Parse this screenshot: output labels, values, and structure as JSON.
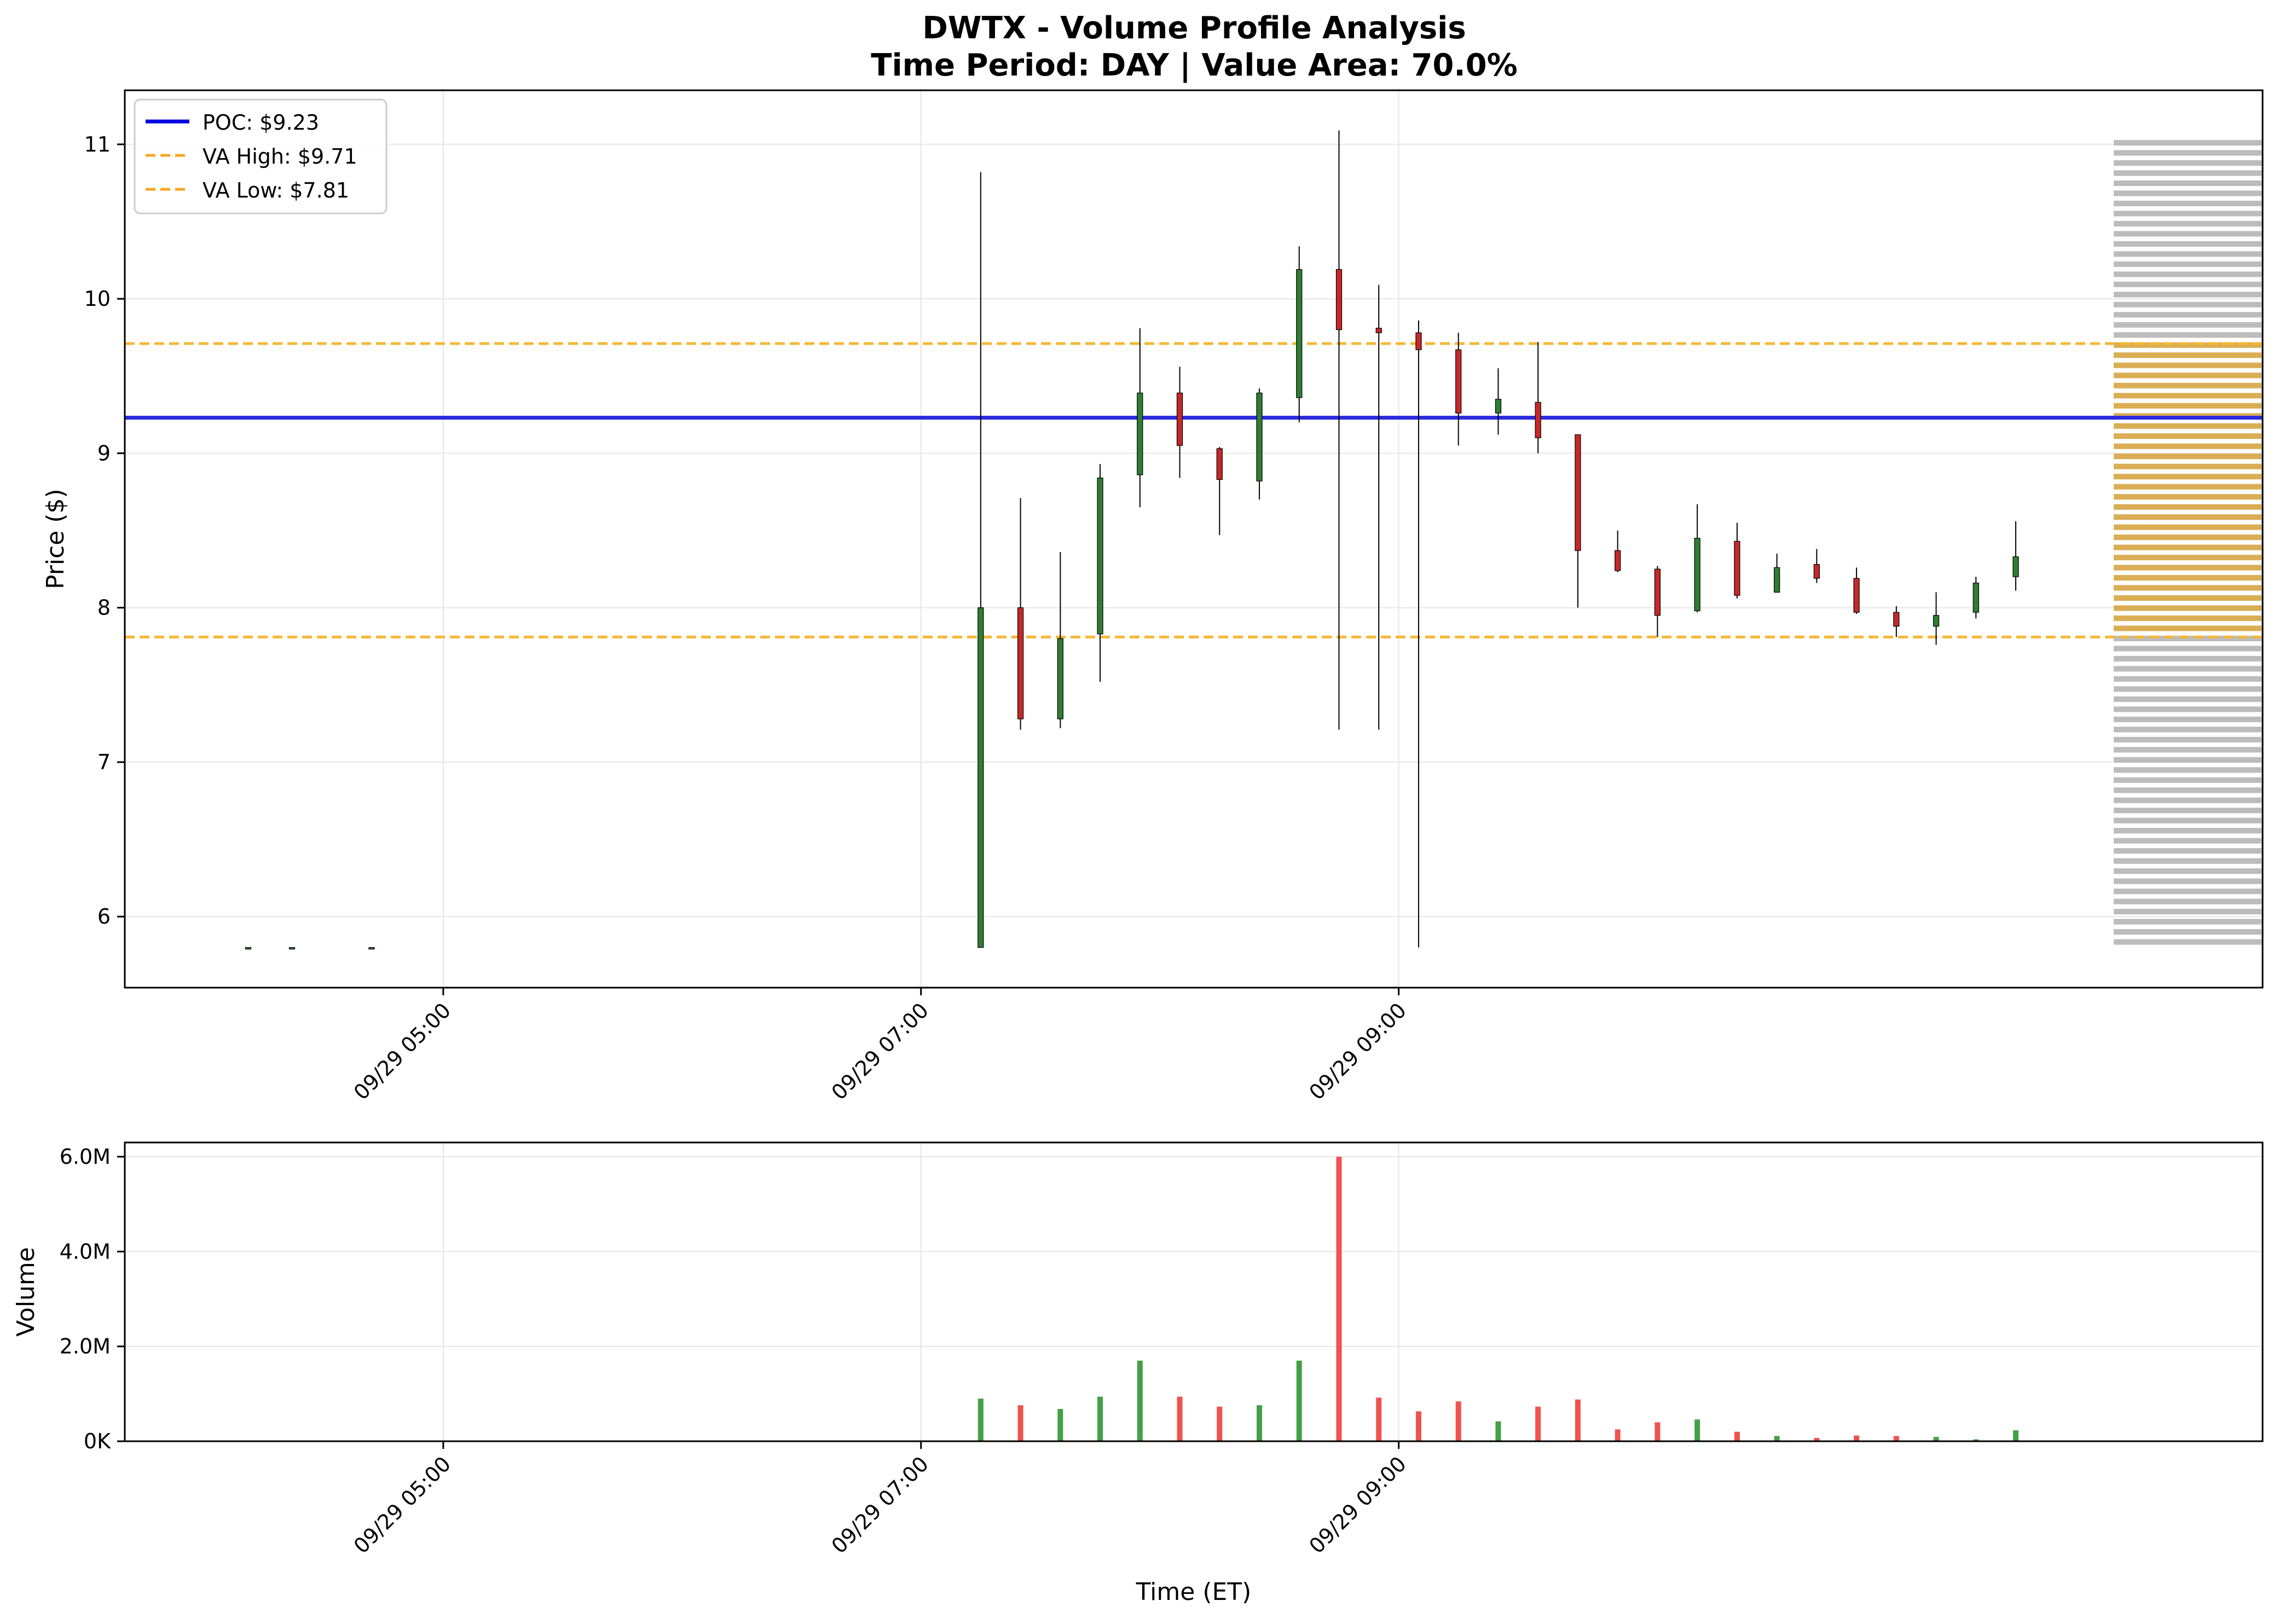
{
  "chart_data": {
    "type": "candlestick-volume-profile",
    "title": "DWTX - Volume Profile Analysis",
    "subtitle": "Time Period: DAY | Value Area: 70.0%",
    "xlabel": "Time (ET)",
    "price_panel": {
      "ylabel": "Price ($)",
      "ylim": [
        5.54,
        11.35
      ],
      "yticks": [
        6,
        7,
        8,
        9,
        10,
        11
      ],
      "ytick_labels": [
        "6",
        "7",
        "8",
        "9",
        "10",
        "11"
      ],
      "grid": true,
      "legend_position": "top-left",
      "legend": [
        {
          "label": "POC: $9.23",
          "style": "solid",
          "color": "#0000e0"
        },
        {
          "label": "VA High: $9.71",
          "style": "dashed",
          "color": "#f5a623"
        },
        {
          "label": "VA Low: $7.81",
          "style": "dashed",
          "color": "#f5a623"
        }
      ],
      "poc": 9.23,
      "va_high": 9.71,
      "va_low": 7.81,
      "candles": [
        {
          "t": 251,
          "o": 5.8,
          "h": 5.8,
          "l": 5.8,
          "c": 5.8
        },
        {
          "t": 262,
          "o": 5.8,
          "h": 5.8,
          "l": 5.8,
          "c": 5.8
        },
        {
          "t": 282,
          "o": 5.8,
          "h": 5.8,
          "l": 5.8,
          "c": 5.8
        },
        {
          "t": 435,
          "o": 5.8,
          "h": 10.82,
          "l": 5.8,
          "c": 8.0
        },
        {
          "t": 445,
          "o": 8.0,
          "h": 8.71,
          "l": 7.21,
          "c": 7.28
        },
        {
          "t": 455,
          "o": 7.28,
          "h": 8.36,
          "l": 7.22,
          "c": 7.8
        },
        {
          "t": 465,
          "o": 7.83,
          "h": 8.93,
          "l": 7.52,
          "c": 8.84
        },
        {
          "t": 475,
          "o": 8.86,
          "h": 9.81,
          "l": 8.65,
          "c": 9.39
        },
        {
          "t": 485,
          "o": 9.39,
          "h": 9.56,
          "l": 8.84,
          "c": 9.05
        },
        {
          "t": 495,
          "o": 9.03,
          "h": 9.04,
          "l": 8.47,
          "c": 8.83
        },
        {
          "t": 505,
          "o": 8.82,
          "h": 9.42,
          "l": 8.7,
          "c": 9.39
        },
        {
          "t": 515,
          "o": 9.36,
          "h": 10.34,
          "l": 9.2,
          "c": 10.19
        },
        {
          "t": 525,
          "o": 10.19,
          "h": 11.09,
          "l": 7.21,
          "c": 9.8
        },
        {
          "t": 535,
          "o": 9.81,
          "h": 10.09,
          "l": 7.21,
          "c": 9.78
        },
        {
          "t": 545,
          "o": 9.78,
          "h": 9.86,
          "l": 5.8,
          "c": 9.67
        },
        {
          "t": 555,
          "o": 9.67,
          "h": 9.78,
          "l": 9.05,
          "c": 9.26
        },
        {
          "t": 565,
          "o": 9.26,
          "h": 9.55,
          "l": 9.12,
          "c": 9.35
        },
        {
          "t": 575,
          "o": 9.33,
          "h": 9.72,
          "l": 9.0,
          "c": 9.1
        },
        {
          "t": 585,
          "o": 9.12,
          "h": 9.12,
          "l": 8.0,
          "c": 8.37
        },
        {
          "t": 595,
          "o": 8.37,
          "h": 8.5,
          "l": 8.23,
          "c": 8.24
        },
        {
          "t": 605,
          "o": 8.25,
          "h": 8.27,
          "l": 7.81,
          "c": 7.95
        },
        {
          "t": 615,
          "o": 7.98,
          "h": 8.67,
          "l": 7.97,
          "c": 8.45
        },
        {
          "t": 625,
          "o": 8.43,
          "h": 8.55,
          "l": 8.06,
          "c": 8.08
        },
        {
          "t": 635,
          "o": 8.1,
          "h": 8.35,
          "l": 8.1,
          "c": 8.26
        },
        {
          "t": 645,
          "o": 8.28,
          "h": 8.38,
          "l": 8.16,
          "c": 8.19
        },
        {
          "t": 655,
          "o": 8.19,
          "h": 8.26,
          "l": 7.96,
          "c": 7.97
        },
        {
          "t": 665,
          "o": 7.97,
          "h": 8.01,
          "l": 7.81,
          "c": 7.88
        },
        {
          "t": 675,
          "o": 7.88,
          "h": 8.1,
          "l": 7.76,
          "c": 7.95
        },
        {
          "t": 685,
          "o": 7.97,
          "h": 8.2,
          "l": 7.93,
          "c": 8.16
        },
        {
          "t": 695,
          "o": 8.2,
          "h": 8.56,
          "l": 8.11,
          "c": 8.33
        }
      ],
      "volume_profile": {
        "price_min": 5.8,
        "price_max": 11.04,
        "bins": 80,
        "bar_color": "#b0b0b0",
        "value_area_color": "#d4a037"
      }
    },
    "volume_panel": {
      "ylabel": "Volume",
      "ylim": [
        0,
        6300000
      ],
      "yticks": [
        0,
        2000000,
        4000000,
        6000000
      ],
      "ytick_labels": [
        "0K",
        "2.0M",
        "4.0M",
        "6.0M"
      ],
      "grid": true,
      "bars": [
        {
          "t": 435,
          "v": 900000
        },
        {
          "t": 445,
          "v": 760000
        },
        {
          "t": 455,
          "v": 680000
        },
        {
          "t": 465,
          "v": 940000
        },
        {
          "t": 475,
          "v": 1700000
        },
        {
          "t": 485,
          "v": 940000
        },
        {
          "t": 495,
          "v": 730000
        },
        {
          "t": 505,
          "v": 760000
        },
        {
          "t": 515,
          "v": 1700000
        },
        {
          "t": 525,
          "v": 6000000
        },
        {
          "t": 535,
          "v": 920000
        },
        {
          "t": 545,
          "v": 630000
        },
        {
          "t": 555,
          "v": 840000
        },
        {
          "t": 565,
          "v": 420000
        },
        {
          "t": 575,
          "v": 730000
        },
        {
          "t": 585,
          "v": 880000
        },
        {
          "t": 595,
          "v": 250000
        },
        {
          "t": 605,
          "v": 400000
        },
        {
          "t": 615,
          "v": 460000
        },
        {
          "t": 625,
          "v": 200000
        },
        {
          "t": 635,
          "v": 110000
        },
        {
          "t": 645,
          "v": 70000
        },
        {
          "t": 655,
          "v": 120000
        },
        {
          "t": 665,
          "v": 110000
        },
        {
          "t": 675,
          "v": 90000
        },
        {
          "t": 685,
          "v": 40000
        },
        {
          "t": 695,
          "v": 230000
        }
      ]
    },
    "x_axis": {
      "xlim": [
        220,
        757
      ],
      "ticks": [
        300,
        420,
        540
      ],
      "tick_labels": [
        "09/29 05:00",
        "09/29 07:00",
        "09/29 09:00"
      ]
    },
    "colors": {
      "up_candle": "#2e7d32",
      "down_candle": "#c62828",
      "up_volume": "#43a047",
      "down_volume": "#ef5350",
      "poc_line": "#2a2ae0",
      "value_area_lines": "#f7b733",
      "grid": "#e6e6e6"
    }
  }
}
